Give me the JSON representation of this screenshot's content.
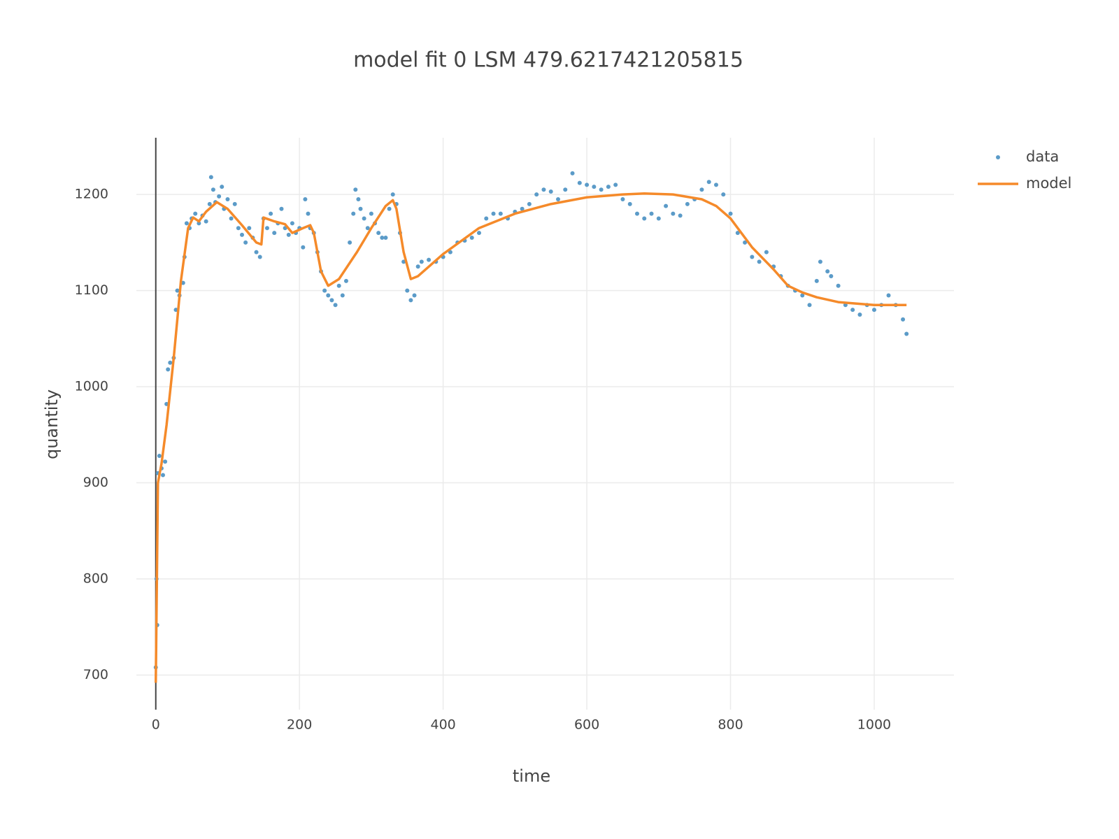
{
  "chart_data": {
    "type": "scatter",
    "title": "model fit 0   LSM 479.6217421205815",
    "x_label": "time",
    "y_label": "quantity",
    "xlim": [
      -27,
      1111
    ],
    "ylim": [
      664,
      1259
    ],
    "xticks": [
      0,
      200,
      400,
      600,
      800,
      1000
    ],
    "yticks": [
      700,
      800,
      900,
      1000,
      1100,
      1200
    ],
    "grid": true,
    "legend_position": "top-right",
    "series": [
      {
        "name": "data",
        "color": "#5b9bc8",
        "mode": "markers",
        "x": [
          0,
          1,
          2,
          3,
          5,
          8,
          10,
          13,
          15,
          17,
          20,
          25,
          28,
          30,
          33,
          38,
          40,
          43,
          47,
          50,
          55,
          60,
          65,
          70,
          75,
          77,
          80,
          83,
          88,
          92,
          95,
          100,
          105,
          110,
          115,
          120,
          125,
          130,
          135,
          140,
          145,
          150,
          155,
          160,
          165,
          170,
          175,
          180,
          185,
          190,
          195,
          200,
          205,
          208,
          212,
          215,
          220,
          225,
          230,
          235,
          240,
          245,
          250,
          255,
          260,
          265,
          270,
          275,
          278,
          282,
          285,
          290,
          295,
          300,
          305,
          310,
          315,
          320,
          325,
          330,
          335,
          340,
          345,
          350,
          355,
          360,
          365,
          370,
          380,
          390,
          400,
          410,
          420,
          430,
          440,
          450,
          460,
          470,
          480,
          490,
          500,
          510,
          520,
          530,
          540,
          550,
          560,
          570,
          580,
          590,
          600,
          610,
          620,
          630,
          640,
          650,
          660,
          670,
          680,
          690,
          700,
          710,
          720,
          730,
          740,
          750,
          760,
          770,
          780,
          790,
          800,
          810,
          820,
          830,
          840,
          850,
          860,
          870,
          880,
          890,
          900,
          910,
          920,
          925,
          935,
          940,
          950,
          960,
          970,
          980,
          990,
          1000,
          1010,
          1020,
          1030,
          1040,
          1045
        ],
        "values": [
          708,
          800,
          752,
          910,
          928,
          915,
          908,
          922,
          982,
          1018,
          1025,
          1030,
          1080,
          1100,
          1095,
          1108,
          1135,
          1170,
          1165,
          1175,
          1180,
          1170,
          1178,
          1172,
          1190,
          1218,
          1205,
          1192,
          1198,
          1208,
          1185,
          1195,
          1175,
          1190,
          1165,
          1158,
          1150,
          1165,
          1155,
          1140,
          1135,
          1175,
          1165,
          1180,
          1160,
          1170,
          1185,
          1165,
          1158,
          1170,
          1160,
          1165,
          1145,
          1195,
          1180,
          1165,
          1160,
          1140,
          1120,
          1100,
          1095,
          1090,
          1085,
          1105,
          1095,
          1110,
          1150,
          1180,
          1205,
          1195,
          1185,
          1175,
          1165,
          1180,
          1170,
          1160,
          1155,
          1155,
          1185,
          1200,
          1190,
          1160,
          1130,
          1100,
          1090,
          1095,
          1125,
          1130,
          1132,
          1130,
          1135,
          1140,
          1150,
          1152,
          1155,
          1160,
          1175,
          1180,
          1180,
          1175,
          1182,
          1185,
          1190,
          1200,
          1205,
          1203,
          1195,
          1205,
          1222,
          1212,
          1210,
          1208,
          1205,
          1208,
          1210,
          1195,
          1190,
          1180,
          1175,
          1180,
          1175,
          1188,
          1180,
          1178,
          1190,
          1195,
          1205,
          1213,
          1210,
          1200,
          1180,
          1160,
          1150,
          1135,
          1130,
          1140,
          1125,
          1115,
          1105,
          1100,
          1095,
          1085,
          1110,
          1130,
          1120,
          1115,
          1105,
          1085,
          1080,
          1075,
          1085,
          1080,
          1085,
          1095,
          1085,
          1070,
          1055
        ]
      },
      {
        "name": "model",
        "color": "#f58a2a",
        "mode": "lines",
        "x": [
          0,
          3,
          8,
          15,
          25,
          35,
          45,
          52,
          60,
          70,
          85,
          100,
          120,
          140,
          147,
          150,
          165,
          180,
          190,
          205,
          215,
          220,
          230,
          240,
          255,
          280,
          300,
          320,
          330,
          335,
          345,
          355,
          365,
          400,
          450,
          500,
          550,
          600,
          650,
          680,
          720,
          760,
          780,
          800,
          830,
          860,
          880,
          900,
          920,
          950,
          1000,
          1045
        ],
        "values": [
          692,
          900,
          920,
          960,
          1030,
          1110,
          1165,
          1176,
          1172,
          1182,
          1192,
          1185,
          1168,
          1150,
          1148,
          1176,
          1172,
          1169,
          1160,
          1165,
          1168,
          1160,
          1120,
          1105,
          1112,
          1140,
          1165,
          1188,
          1194,
          1185,
          1140,
          1112,
          1115,
          1138,
          1165,
          1180,
          1190,
          1197,
          1200,
          1201,
          1200,
          1195,
          1188,
          1175,
          1145,
          1122,
          1105,
          1098,
          1093,
          1088,
          1085,
          1085
        ]
      }
    ]
  }
}
